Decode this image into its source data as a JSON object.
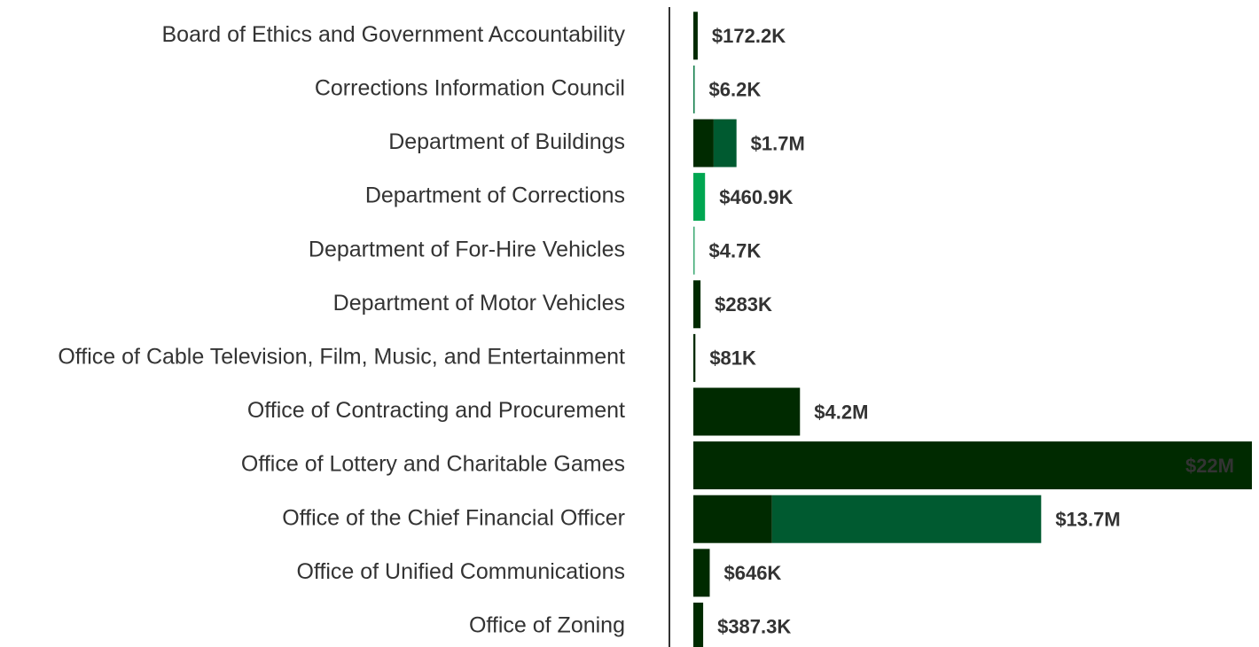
{
  "chart_data": {
    "type": "stacked-bar-horizontal",
    "categories": [
      "Board of Ethics and Government Accountability",
      "Corrections Information Council",
      "Department of Buildings",
      "Department of Corrections",
      "Department of For-Hire Vehicles",
      "Department of Motor Vehicles",
      "Office of Cable Television, Film, Music, and Entertainment",
      "Office of Contracting and Procurement",
      "Office of Lottery and Charitable Games",
      "Office of the Chief Financial Officer",
      "Office of Unified Communications",
      "Office of Zoning"
    ],
    "series": [
      {
        "colors": [
          "#002a00",
          "#0a7a45",
          "#002a00",
          "#00a651",
          "#3aa872",
          "#002a00",
          "#002a00",
          "#002a00",
          "#002a00",
          "#002a00",
          "#002a00",
          "#002a00"
        ],
        "values": [
          172200,
          6200,
          800000,
          460900,
          4700,
          283000,
          81000,
          4200000,
          22000000,
          3100000,
          646000,
          387300
        ]
      },
      {
        "color": "#005a30",
        "values": [
          null,
          null,
          900000,
          null,
          null,
          null,
          null,
          null,
          null,
          10600000,
          null,
          null
        ]
      }
    ],
    "totals": [
      172200,
      6200,
      1700000,
      460900,
      4700,
      283000,
      81000,
      4200000,
      22000000,
      13700000,
      646000,
      387300
    ],
    "total_labels": [
      "$172.2K",
      "$6.2K",
      "$1.7M",
      "$460.9K",
      "$4.7K",
      "$283K",
      "$81K",
      "$4.2M",
      "$22M",
      "$13.7M",
      "$646K",
      "$387.3K"
    ]
  }
}
